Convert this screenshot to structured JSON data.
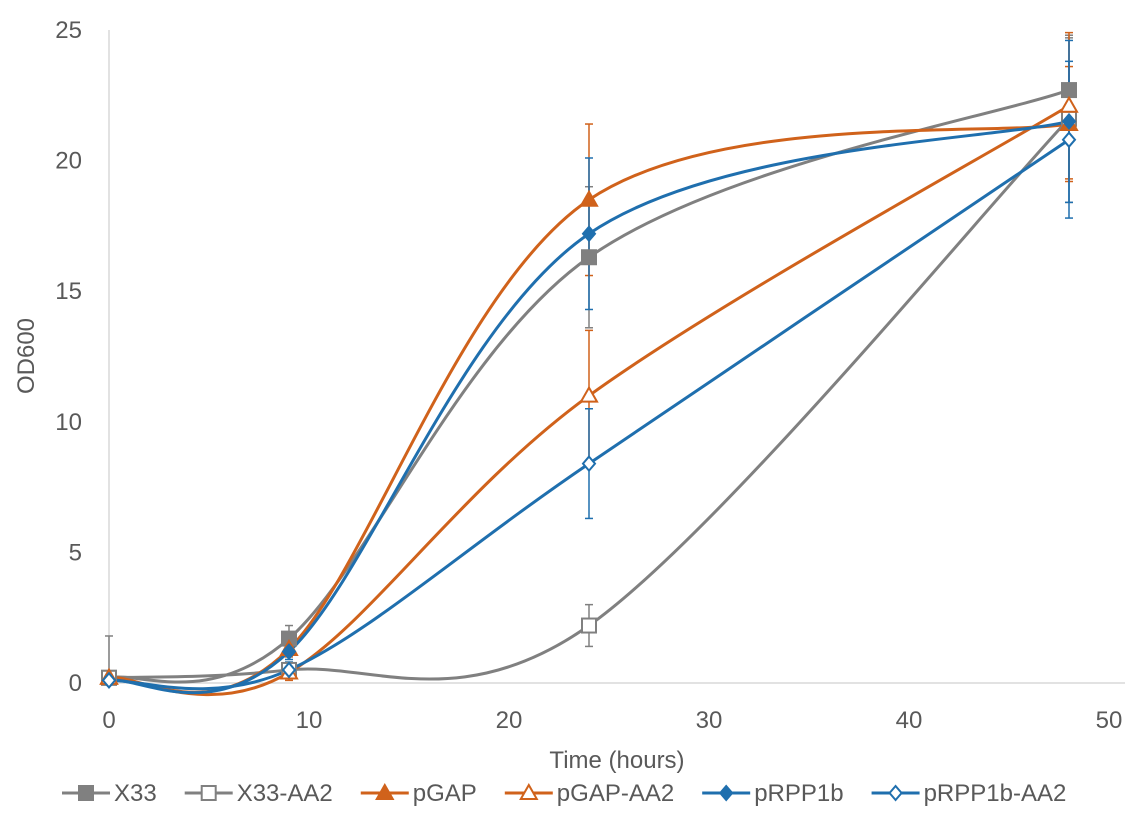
{
  "chart_data": {
    "type": "scatter",
    "xlabel": "Time (hours)",
    "ylabel": "OD600",
    "xlim": [
      0,
      50
    ],
    "ylim": [
      0,
      25
    ],
    "x_ticks": [
      0,
      10,
      20,
      30,
      40,
      50
    ],
    "y_ticks": [
      0,
      5,
      10,
      15,
      20,
      25
    ],
    "grid": false,
    "legend_position": "bottom",
    "smooth_lines": true,
    "x": [
      0,
      9,
      24,
      48
    ],
    "series": [
      {
        "name": "X33",
        "color": "#808080",
        "marker": "square",
        "filled": true,
        "values": [
          0.2,
          1.7,
          16.3,
          22.7
        ],
        "errors": [
          1.6,
          0.5,
          2.7,
          2.0
        ]
      },
      {
        "name": "X33-AA2",
        "color": "#808080",
        "marker": "square",
        "filled": false,
        "values": [
          0.2,
          0.5,
          2.2,
          21.6
        ],
        "errors": [
          0.2,
          0.3,
          0.8,
          3.2
        ]
      },
      {
        "name": "pGAP",
        "color": "#D0621B",
        "marker": "triangle",
        "filled": true,
        "values": [
          0.2,
          1.3,
          18.5,
          21.4
        ],
        "errors": [
          0.2,
          0.3,
          2.9,
          2.2
        ]
      },
      {
        "name": "pGAP-AA2",
        "color": "#D0621B",
        "marker": "triangle",
        "filled": false,
        "values": [
          0.2,
          0.4,
          11.0,
          22.1
        ],
        "errors": [
          0.2,
          0.3,
          2.5,
          2.8
        ]
      },
      {
        "name": "pRPP1b",
        "color": "#1F6FAE",
        "marker": "diamond",
        "filled": true,
        "values": [
          0.1,
          1.2,
          17.2,
          21.5
        ],
        "errors": [
          0.2,
          0.3,
          2.9,
          3.1
        ]
      },
      {
        "name": "pRPP1b-AA2",
        "color": "#1F6FAE",
        "marker": "diamond",
        "filled": false,
        "values": [
          0.1,
          0.5,
          8.4,
          20.8
        ],
        "errors": [
          0.2,
          0.3,
          2.1,
          3.0
        ]
      }
    ]
  }
}
